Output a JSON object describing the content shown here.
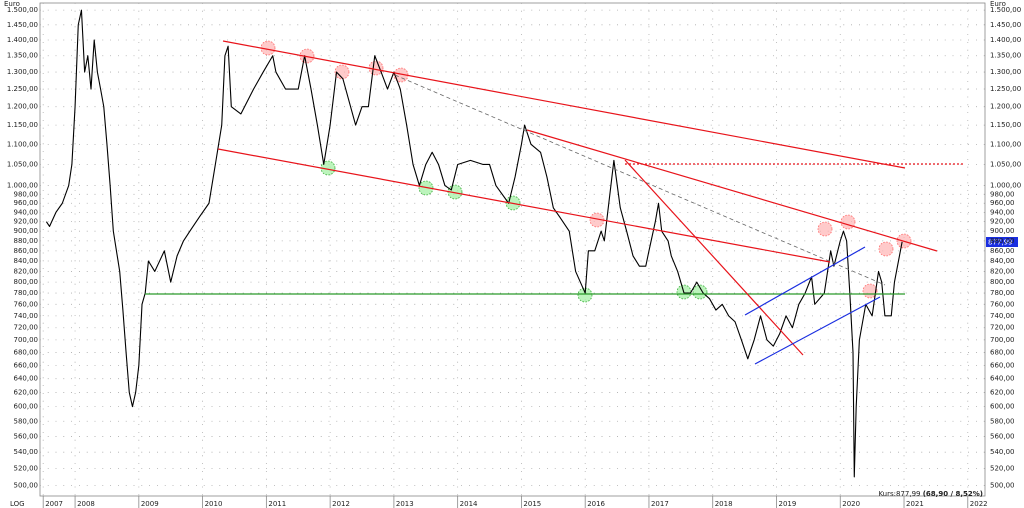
{
  "chart_data": {
    "type": "line",
    "y_unit_left": "Euro",
    "y_unit_right": "Euro",
    "scale_label": "LOG",
    "log_scale": true,
    "grid": true,
    "kurs_label": "Kurs:877,99",
    "kurs_change": "(68,90 / 8,52%)",
    "last_price_label": "877,99",
    "xlim": [
      2007.45,
      2022.27
    ],
    "ylim": [
      488,
      1525
    ],
    "xticks": [
      {
        "value": 2007.5,
        "label": "2007"
      },
      2008,
      2009,
      2010,
      2011,
      2012,
      2013,
      2014,
      2015,
      2016,
      2017,
      2018,
      2019,
      2020,
      2021,
      2022
    ],
    "yticks": [
      {
        "value": 500,
        "label": "500,00"
      },
      {
        "value": 520,
        "label": "520,00"
      },
      {
        "value": 540,
        "label": "540,00"
      },
      {
        "value": 560,
        "label": "560,00"
      },
      {
        "value": 580,
        "label": "580,00"
      },
      {
        "value": 600,
        "label": "600,00"
      },
      {
        "value": 620,
        "label": "620,00"
      },
      {
        "value": 640,
        "label": "640,00"
      },
      {
        "value": 660,
        "label": "660,00"
      },
      {
        "value": 680,
        "label": "680,00"
      },
      {
        "value": 700,
        "label": "700,00"
      },
      {
        "value": 720,
        "label": "720,00"
      },
      {
        "value": 740,
        "label": "740,00"
      },
      {
        "value": 760,
        "label": "760,00"
      },
      {
        "value": 780,
        "label": "780,00"
      },
      {
        "value": 800,
        "label": "800,00"
      },
      {
        "value": 820,
        "label": "820,00"
      },
      {
        "value": 840,
        "label": "840,00"
      },
      {
        "value": 860,
        "label": "860,00"
      },
      {
        "value": 880,
        "label": "880,00"
      },
      {
        "value": 900,
        "label": "900,00"
      },
      {
        "value": 920,
        "label": "920,00"
      },
      {
        "value": 940,
        "label": "940,00"
      },
      {
        "value": 960,
        "label": "960,00"
      },
      {
        "value": 980,
        "label": "980,00"
      },
      {
        "value": 1000,
        "label": "1.000,00"
      },
      {
        "value": 1050,
        "label": "1.050,00"
      },
      {
        "value": 1100,
        "label": "1.100,00"
      },
      {
        "value": 1150,
        "label": "1.150,00"
      },
      {
        "value": 1200,
        "label": "1.200,00"
      },
      {
        "value": 1250,
        "label": "1.250,00"
      },
      {
        "value": 1300,
        "label": "1.300,00"
      },
      {
        "value": 1350,
        "label": "1.350,00"
      },
      {
        "value": 1400,
        "label": "1.400,00"
      },
      {
        "value": 1450,
        "label": "1.450,00"
      },
      {
        "value": 1500,
        "label": "1.500,00"
      }
    ],
    "x": [
      2007.55,
      2007.6,
      2007.7,
      2007.8,
      2007.9,
      2007.95,
      2008.0,
      2008.05,
      2008.1,
      2008.15,
      2008.2,
      2008.25,
      2008.3,
      2008.35,
      2008.4,
      2008.45,
      2008.5,
      2008.55,
      2008.6,
      2008.7,
      2008.75,
      2008.8,
      2008.85,
      2008.9,
      2008.95,
      2009.0,
      2009.05,
      2009.1,
      2009.15,
      2009.25,
      2009.4,
      2009.5,
      2009.6,
      2009.7,
      2009.8,
      2009.95,
      2010.1,
      2010.2,
      2010.3,
      2010.35,
      2010.4,
      2010.45,
      2010.6,
      2010.8,
      2010.95,
      2011.1,
      2011.15,
      2011.3,
      2011.5,
      2011.6,
      2011.7,
      2011.8,
      2011.9,
      2012.0,
      2012.1,
      2012.2,
      2012.4,
      2012.5,
      2012.6,
      2012.7,
      2012.8,
      2012.9,
      2013.0,
      2013.1,
      2013.2,
      2013.3,
      2013.4,
      2013.5,
      2013.6,
      2013.7,
      2013.8,
      2013.9,
      2014.0,
      2014.2,
      2014.4,
      2014.5,
      2014.6,
      2014.8,
      2014.9,
      2015.0,
      2015.05,
      2015.15,
      2015.3,
      2015.4,
      2015.5,
      2015.6,
      2015.75,
      2015.85,
      2016.0,
      2016.05,
      2016.15,
      2016.25,
      2016.3,
      2016.45,
      2016.55,
      2016.65,
      2016.75,
      2016.85,
      2016.95,
      2017.0,
      2017.1,
      2017.15,
      2017.2,
      2017.3,
      2017.35,
      2017.45,
      2017.55,
      2017.65,
      2017.75,
      2017.85,
      2017.95,
      2018.05,
      2018.15,
      2018.25,
      2018.35,
      2018.45,
      2018.55,
      2018.65,
      2018.75,
      2018.85,
      2018.95,
      2019.05,
      2019.15,
      2019.25,
      2019.35,
      2019.45,
      2019.55,
      2019.6,
      2019.75,
      2019.85,
      2019.9,
      2020.0,
      2020.05,
      2020.1,
      2020.15,
      2020.2,
      2020.22,
      2020.25,
      2020.3,
      2020.4,
      2020.5,
      2020.6,
      2020.65,
      2020.7,
      2020.8,
      2020.85,
      2020.97
    ],
    "series": [
      {
        "color": "#000000",
        "values": [
          920,
          910,
          940,
          960,
          1000,
          1050,
          1200,
          1450,
          1500,
          1300,
          1350,
          1250,
          1400,
          1300,
          1250,
          1200,
          1100,
          1000,
          900,
          820,
          750,
          680,
          620,
          600,
          620,
          660,
          760,
          780,
          840,
          820,
          860,
          800,
          850,
          880,
          900,
          930,
          960,
          1050,
          1150,
          1350,
          1380,
          1200,
          1180,
          1250,
          1300,
          1350,
          1300,
          1250,
          1250,
          1350,
          1250,
          1150,
          1050,
          1150,
          1300,
          1280,
          1150,
          1200,
          1200,
          1350,
          1300,
          1250,
          1300,
          1250,
          1150,
          1050,
          1000,
          1050,
          1080,
          1050,
          1000,
          990,
          1050,
          1060,
          1050,
          1050,
          1000,
          960,
          1020,
          1100,
          1150,
          1100,
          1080,
          1020,
          950,
          930,
          900,
          820,
          780,
          860,
          860,
          900,
          880,
          1060,
          950,
          900,
          850,
          830,
          830,
          860,
          920,
          960,
          900,
          880,
          850,
          820,
          780,
          780,
          800,
          780,
          770,
          750,
          760,
          740,
          730,
          700,
          670,
          700,
          740,
          700,
          690,
          710,
          740,
          720,
          760,
          780,
          810,
          760,
          780,
          860,
          830,
          880,
          900,
          880,
          780,
          680,
          510,
          600,
          700,
          760,
          740,
          820,
          800,
          740,
          740,
          800,
          878
        ]
      }
    ]
  }
}
